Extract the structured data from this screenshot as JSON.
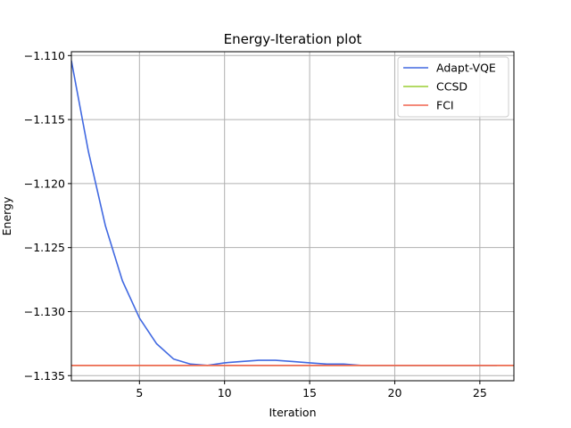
{
  "chart_data": {
    "type": "line",
    "title": "Energy-Iteration plot",
    "xlabel": "Iteration",
    "ylabel": "Energy",
    "xlim": [
      1,
      27
    ],
    "ylim": [
      -1.1354,
      -1.1097
    ],
    "xticks": [
      5,
      10,
      15,
      20,
      25
    ],
    "xtick_labels": [
      "5",
      "10",
      "15",
      "20",
      "25"
    ],
    "yticks": [
      -1.11,
      -1.115,
      -1.12,
      -1.125,
      -1.13,
      -1.135
    ],
    "ytick_labels": [
      "−1.110",
      "−1.115",
      "−1.120",
      "−1.125",
      "−1.130",
      "−1.135"
    ],
    "grid": true,
    "legend_position": "upper right",
    "series": [
      {
        "name": "Adapt-VQE",
        "color": "#4169e1",
        "x": [
          1,
          2,
          3,
          4,
          5,
          6,
          7,
          8,
          9,
          10,
          11,
          12,
          13,
          14,
          15,
          16,
          17,
          18,
          19,
          20,
          21,
          22,
          23,
          24,
          25,
          26
        ],
        "y": [
          -1.1104,
          -1.1175,
          -1.1233,
          -1.1276,
          -1.1305,
          -1.1325,
          -1.1337,
          -1.1341,
          -1.1342,
          -1.134,
          -1.1339,
          -1.1338,
          -1.1338,
          -1.1339,
          -1.134,
          -1.1341,
          -1.1341,
          -1.1342,
          -1.1342,
          -1.1342,
          -1.1342,
          -1.1342,
          -1.1342,
          -1.1342,
          -1.1342,
          -1.1342
        ]
      },
      {
        "name": "CCSD",
        "color": "#9acd32",
        "x": [
          1,
          27
        ],
        "y": [
          -1.1342,
          -1.1342
        ]
      },
      {
        "name": "FCI",
        "color": "#f0624d",
        "x": [
          1,
          27
        ],
        "y": [
          -1.1342,
          -1.1342
        ]
      }
    ]
  }
}
